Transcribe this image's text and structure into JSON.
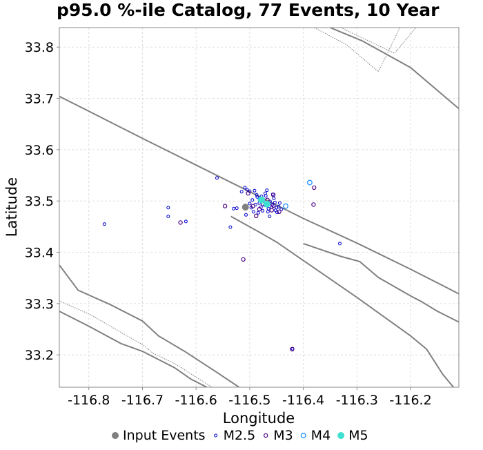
{
  "chart_data": {
    "type": "scatter",
    "title": "p95.0 %-ile Catalog, 77 Events, 10 Year",
    "xlabel": "Longitude",
    "ylabel": "Latitude",
    "xlim": [
      -116.855,
      -116.11
    ],
    "ylim": [
      33.137,
      33.838
    ],
    "xticks": [
      -116.8,
      -116.7,
      -116.6,
      -116.5,
      -116.4,
      -116.3,
      -116.2
    ],
    "xtick_labels": [
      "-116.8",
      "-116.7",
      "-116.6",
      "-116.5",
      "-116.4",
      "-116.3",
      "-116.2"
    ],
    "yticks": [
      33.2,
      33.3,
      33.4,
      33.5,
      33.6,
      33.7,
      33.8
    ],
    "ytick_labels": [
      "33.2",
      "33.3",
      "33.4",
      "33.5",
      "33.6",
      "33.7",
      "33.8"
    ],
    "grid": true,
    "legend_position": "bottom",
    "colors": {
      "input_events": "#808080",
      "m25": "#0000cd",
      "m3": "#4b0082",
      "m4": "#1e90ff",
      "m5": "#40e0d0",
      "fault": "#808080"
    },
    "series": [
      {
        "name": "Input Events",
        "marker": "filled-circle",
        "points": [
          [
            -116.508,
            33.488
          ]
        ]
      },
      {
        "name": "M2.5",
        "marker": "open-circle",
        "points": [
          [
            -116.771,
            33.455
          ],
          [
            -116.652,
            33.487
          ],
          [
            -116.652,
            33.47
          ],
          [
            -116.619,
            33.46
          ],
          [
            -116.561,
            33.545
          ],
          [
            -116.536,
            33.449
          ],
          [
            -116.515,
            33.518
          ],
          [
            -116.509,
            33.526
          ],
          [
            -116.505,
            33.522
          ],
          [
            -116.5,
            33.519
          ],
          [
            -116.491,
            33.52
          ],
          [
            -116.486,
            33.508
          ],
          [
            -116.482,
            33.496
          ],
          [
            -116.479,
            33.488
          ],
          [
            -116.476,
            33.481
          ],
          [
            -116.472,
            33.492
          ],
          [
            -116.47,
            33.51
          ],
          [
            -116.468,
            33.521
          ],
          [
            -116.465,
            33.485
          ],
          [
            -116.462,
            33.499
          ],
          [
            -116.458,
            33.493
          ],
          [
            -116.455,
            33.505
          ],
          [
            -116.452,
            33.482
          ],
          [
            -116.449,
            33.478
          ],
          [
            -116.446,
            33.489
          ],
          [
            -116.444,
            33.496
          ],
          [
            -116.441,
            33.484
          ],
          [
            -116.495,
            33.502
          ],
          [
            -116.497,
            33.487
          ],
          [
            -116.489,
            33.493
          ],
          [
            -116.484,
            33.477
          ],
          [
            -116.475,
            33.5
          ],
          [
            -116.463,
            33.47
          ],
          [
            -116.457,
            33.513
          ],
          [
            -116.453,
            33.497
          ],
          [
            -116.45,
            33.487
          ],
          [
            -116.507,
            33.473
          ],
          [
            -116.5,
            33.495
          ],
          [
            -116.493,
            33.479
          ],
          [
            -116.53,
            33.485
          ],
          [
            -116.524,
            33.486
          ],
          [
            -116.466,
            33.479
          ],
          [
            -116.459,
            33.488
          ],
          [
            -116.471,
            33.515
          ],
          [
            -116.487,
            33.512
          ],
          [
            -116.478,
            33.509
          ],
          [
            -116.332,
            33.417
          ],
          [
            -116.42,
            33.212
          ]
        ]
      },
      {
        "name": "M3",
        "marker": "open-circle",
        "points": [
          [
            -116.629,
            33.458
          ],
          [
            -116.546,
            33.49
          ],
          [
            -116.512,
            33.386
          ],
          [
            -116.488,
            33.471
          ],
          [
            -116.503,
            33.515
          ],
          [
            -116.494,
            33.49
          ],
          [
            -116.456,
            33.512
          ],
          [
            -116.456,
            33.491
          ],
          [
            -116.445,
            33.479
          ],
          [
            -116.421,
            33.211
          ],
          [
            -116.38,
            33.526
          ],
          [
            -116.381,
            33.493
          ],
          [
            -116.467,
            33.502
          ],
          [
            -116.482,
            33.484
          ],
          [
            -116.475,
            33.494
          ],
          [
            -116.459,
            33.482
          ]
        ]
      },
      {
        "name": "M4",
        "marker": "open-circle",
        "points": [
          [
            -116.388,
            33.536
          ],
          [
            -116.433,
            33.49
          ],
          [
            -116.48,
            33.503
          ],
          [
            -116.468,
            33.495
          ]
        ]
      },
      {
        "name": "M5",
        "marker": "filled-circle",
        "points": [
          [
            -116.478,
            33.502
          ],
          [
            -116.468,
            33.494
          ]
        ]
      }
    ],
    "faults": [
      {
        "style": "solid",
        "points": [
          [
            -116.855,
            33.704
          ],
          [
            -116.8,
            33.675
          ],
          [
            -116.7,
            33.622
          ],
          [
            -116.6,
            33.57
          ],
          [
            -116.5,
            33.518
          ],
          [
            -116.4,
            33.466
          ],
          [
            -116.3,
            33.418
          ],
          [
            -116.2,
            33.367
          ],
          [
            -116.11,
            33.319
          ]
        ]
      },
      {
        "style": "solid",
        "points": [
          [
            -116.855,
            33.375
          ],
          [
            -116.82,
            33.326
          ],
          [
            -116.76,
            33.298
          ],
          [
            -116.7,
            33.266
          ],
          [
            -116.67,
            33.237
          ],
          [
            -116.62,
            33.206
          ],
          [
            -116.56,
            33.165
          ],
          [
            -116.52,
            33.137
          ]
        ]
      },
      {
        "style": "solid",
        "points": [
          [
            -116.855,
            33.285
          ],
          [
            -116.8,
            33.256
          ],
          [
            -116.74,
            33.222
          ],
          [
            -116.7,
            33.207
          ],
          [
            -116.64,
            33.175
          ],
          [
            -116.61,
            33.153
          ],
          [
            -116.58,
            33.137
          ]
        ]
      },
      {
        "style": "solid",
        "points": [
          [
            -116.535,
            33.47
          ],
          [
            -116.48,
            33.438
          ],
          [
            -116.45,
            33.42
          ],
          [
            -116.4,
            33.384
          ],
          [
            -116.3,
            33.312
          ],
          [
            -116.2,
            33.237
          ],
          [
            -116.17,
            33.211
          ],
          [
            -116.14,
            33.162
          ],
          [
            -116.12,
            33.137
          ]
        ]
      },
      {
        "style": "solid",
        "points": [
          [
            -116.4,
            33.417
          ],
          [
            -116.33,
            33.392
          ],
          [
            -116.295,
            33.382
          ],
          [
            -116.26,
            33.351
          ],
          [
            -116.2,
            33.315
          ],
          [
            -116.18,
            33.304
          ],
          [
            -116.15,
            33.285
          ],
          [
            -116.11,
            33.264
          ]
        ]
      },
      {
        "style": "solid",
        "points": [
          [
            -116.35,
            33.838
          ],
          [
            -116.29,
            33.812
          ],
          [
            -116.2,
            33.76
          ],
          [
            -116.11,
            33.68
          ]
        ]
      },
      {
        "style": "dotted",
        "points": [
          [
            -116.855,
            33.305
          ],
          [
            -116.8,
            33.28
          ],
          [
            -116.74,
            33.244
          ],
          [
            -116.7,
            33.22
          ],
          [
            -116.68,
            33.203
          ],
          [
            -116.64,
            33.183
          ],
          [
            -116.59,
            33.15
          ],
          [
            -116.57,
            33.137
          ]
        ]
      },
      {
        "style": "dotted",
        "points": [
          [
            -116.38,
            33.838
          ],
          [
            -116.32,
            33.805
          ],
          [
            -116.26,
            33.752
          ],
          [
            -116.22,
            33.838
          ]
        ]
      },
      {
        "style": "dotted",
        "points": [
          [
            -116.33,
            33.838
          ],
          [
            -116.23,
            33.788
          ],
          [
            -116.19,
            33.838
          ]
        ]
      }
    ]
  }
}
